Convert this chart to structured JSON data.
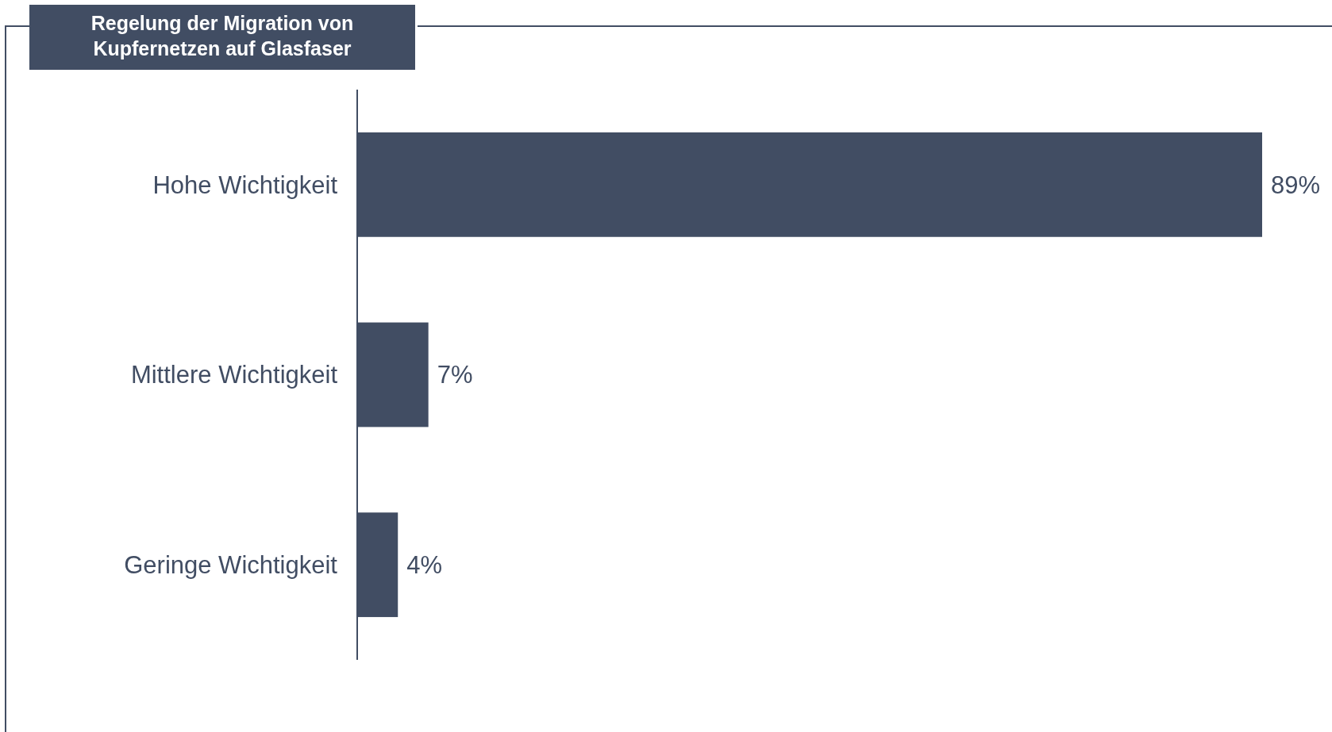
{
  "chart_data": {
    "type": "bar",
    "orientation": "horizontal",
    "title": "Regelung der Migration von Kupfernetzen auf Glasfaser",
    "categories": [
      "Hohe Wichtigkeit",
      "Mittlere Wichtigkeit",
      "Geringe Wichtigkeit"
    ],
    "values": [
      89,
      7,
      4
    ],
    "value_labels": [
      "89%",
      "7%",
      "4%"
    ],
    "color": "#414d63"
  }
}
